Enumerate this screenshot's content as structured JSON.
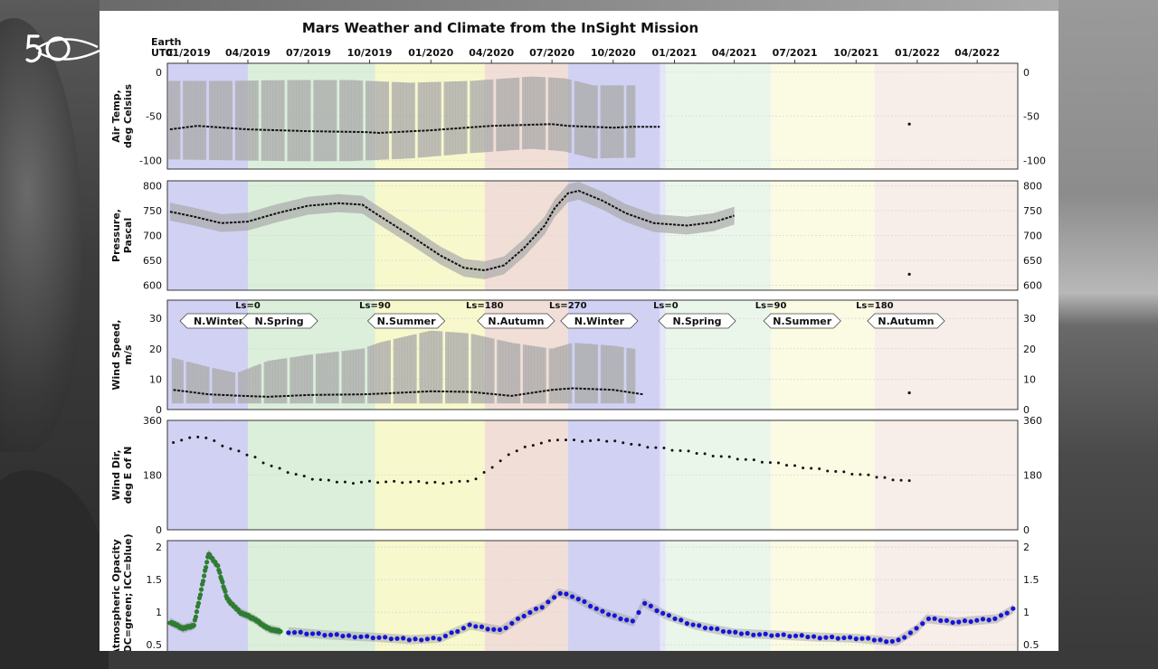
{
  "figure": {
    "title": "Mars Weather and Climate from the InSight Mission",
    "x_axis_caption": [
      "Earth",
      "UTC"
    ]
  },
  "colors": {
    "winter": "#c9c9f2",
    "spring": "#d5ecd5",
    "summer": "#f7f7c4",
    "autumn": "#efd9d0",
    "envelope": "#a9a9a9",
    "median": "#111111",
    "opacity_idc": "#2f7d32",
    "opacity_icc": "#1515d6"
  },
  "chart_data": {
    "type": "line",
    "x_axis": {
      "kind": "date",
      "range": [
        "2018-12-01",
        "2022-06-01"
      ],
      "tick_labels": [
        "01/2019",
        "04/2019",
        "07/2019",
        "10/2019",
        "01/2020",
        "04/2020",
        "07/2020",
        "10/2020",
        "01/2021",
        "04/2021",
        "07/2021",
        "10/2021",
        "01/2022",
        "04/2022"
      ]
    },
    "seasons": [
      {
        "name": "N.Winter",
        "start": "2018-12-01",
        "end": "2019-04-01",
        "color_key": "winter"
      },
      {
        "name": "N.Spring",
        "start": "2019-04-01",
        "end": "2019-10-09",
        "color_key": "spring"
      },
      {
        "name": "N.Summer",
        "start": "2019-10-09",
        "end": "2020-03-22",
        "color_key": "summer"
      },
      {
        "name": "N.Autumn",
        "start": "2020-03-22",
        "end": "2020-07-25",
        "color_key": "autumn"
      },
      {
        "name": "N.Winter",
        "start": "2020-07-25",
        "end": "2020-12-19",
        "color_key": "winter"
      },
      {
        "name": "N.Spring",
        "start": "2020-12-19",
        "end": "2021-05-26",
        "color_key": "spring"
      },
      {
        "name": "N.Summer",
        "start": "2021-05-26",
        "end": "2021-10-29",
        "color_key": "summer"
      },
      {
        "name": "N.Autumn",
        "start": "2021-10-29",
        "end": "2022-06-01",
        "color_key": "autumn"
      }
    ],
    "ls_markers": [
      {
        "label": "Ls=0",
        "date": "2019-04-01"
      },
      {
        "label": "Ls=90",
        "date": "2019-10-09"
      },
      {
        "label": "Ls=180",
        "date": "2020-03-22"
      },
      {
        "label": "Ls=270",
        "date": "2020-07-25"
      },
      {
        "label": "Ls=0",
        "date": "2020-12-19"
      },
      {
        "label": "Ls=90",
        "date": "2021-05-26"
      },
      {
        "label": "Ls=180",
        "date": "2021-10-29"
      }
    ],
    "panels": [
      {
        "id": "air-temp",
        "ylabel": [
          "Air Temp,",
          "deg Celsius"
        ],
        "ylim": [
          -110,
          10
        ],
        "yticks": [
          0,
          -50,
          -100
        ],
        "series": [
          {
            "kind": "envelope",
            "x": [
              "2018-12-05",
              "2019-03-01",
              "2019-06-01",
              "2019-09-01",
              "2019-12-01",
              "2020-03-01",
              "2020-06-01",
              "2020-07-20",
              "2020-09-01",
              "2020-11-01"
            ],
            "upper": [
              -10,
              -10,
              -9,
              -9,
              -12,
              -10,
              -5,
              -7,
              -15,
              -15
            ],
            "lower": [
              -99,
              -100,
              -101,
              -101,
              -98,
              -92,
              -87,
              -90,
              -98,
              -97
            ]
          },
          {
            "kind": "median",
            "x": [
              "2018-12-05",
              "2019-01-15",
              "2019-04-01",
              "2019-07-01",
              "2019-09-25",
              "2019-10-15",
              "2020-01-01",
              "2020-04-01",
              "2020-07-01",
              "2020-07-25",
              "2020-10-01",
              "2020-11-01",
              "2020-11-15",
              "2020-12-10",
              "2021-12-20"
            ],
            "y": [
              -65,
              -61,
              -65,
              -67,
              -68,
              -69,
              -66,
              -61,
              -59,
              -61,
              -63,
              -62,
              -62,
              -62,
              -59
            ]
          }
        ]
      },
      {
        "id": "pressure",
        "ylabel": [
          "Pressure,",
          "Pascal"
        ],
        "ylim": [
          590,
          810
        ],
        "yticks": [
          800,
          750,
          700,
          650,
          600
        ],
        "series": [
          {
            "kind": "median",
            "x": [
              "2018-12-05",
              "2019-01-10",
              "2019-02-20",
              "2019-04-01",
              "2019-05-15",
              "2019-07-01",
              "2019-08-15",
              "2019-09-20",
              "2019-10-15",
              "2019-12-01",
              "2020-01-15",
              "2020-02-20",
              "2020-03-22",
              "2020-04-20",
              "2020-05-20",
              "2020-06-20",
              "2020-07-05",
              "2020-07-25",
              "2020-08-10",
              "2020-09-15",
              "2020-10-20",
              "2020-12-01",
              "2021-01-20",
              "2021-03-01",
              "2021-04-01",
              "2021-12-20"
            ],
            "y": [
              748,
              738,
              725,
              728,
              745,
              760,
              765,
              762,
              740,
              700,
              660,
              635,
              630,
              640,
              675,
              720,
              755,
              785,
              790,
              770,
              745,
              725,
              720,
              727,
              740,
              622
            ]
          }
        ]
      },
      {
        "id": "wind-speed",
        "ylabel": [
          "Wind Speed,",
          "m/s"
        ],
        "ylim": [
          0,
          36
        ],
        "yticks": [
          0,
          10,
          20,
          30
        ],
        "series": [
          {
            "kind": "envelope",
            "x": [
              "2018-12-10",
              "2019-02-01",
              "2019-03-15",
              "2019-05-01",
              "2019-07-01",
              "2019-09-20",
              "2019-10-15",
              "2020-01-01",
              "2020-03-01",
              "2020-05-01",
              "2020-07-01",
              "2020-08-01",
              "2020-10-01",
              "2020-11-01"
            ],
            "upper": [
              17,
              14,
              12,
              16,
              18,
              20,
              22,
              26,
              25,
              22,
              20,
              22,
              21,
              20
            ],
            "lower": [
              2,
              2,
              2,
              2,
              2,
              2,
              2,
              2,
              2,
              2,
              2,
              2,
              2,
              2
            ]
          },
          {
            "kind": "median",
            "x": [
              "2018-12-10",
              "2019-02-01",
              "2019-03-25",
              "2019-05-01",
              "2019-07-01",
              "2019-09-20",
              "2019-10-15",
              "2020-01-01",
              "2020-03-01",
              "2020-05-01",
              "2020-07-01",
              "2020-08-01",
              "2020-10-01",
              "2020-11-15",
              "2021-12-20"
            ],
            "y": [
              6.5,
              5,
              4.5,
              4.2,
              4.8,
              5,
              5.2,
              6,
              5.8,
              4.5,
              6.5,
              7,
              6.5,
              5,
              5.5
            ]
          }
        ]
      },
      {
        "id": "wind-dir",
        "ylabel": [
          "Wind Dir,",
          "deg E of N"
        ],
        "ylim": [
          0,
          360
        ],
        "yticks": [
          0,
          180,
          360
        ],
        "series": [
          {
            "kind": "points",
            "x": [
              "2018-12-10",
              "2019-01-01",
              "2019-01-20",
              "2019-02-10",
              "2019-03-01",
              "2019-03-20",
              "2019-04-10",
              "2019-05-01",
              "2019-06-01",
              "2019-07-01",
              "2019-08-01",
              "2019-09-01",
              "2019-09-25",
              "2019-10-15",
              "2019-11-15",
              "2019-12-15",
              "2020-01-15",
              "2020-02-15",
              "2020-03-10",
              "2020-04-01",
              "2020-04-20",
              "2020-05-10",
              "2020-06-01",
              "2020-06-20",
              "2020-07-10",
              "2020-08-10",
              "2020-09-15",
              "2020-10-15",
              "2020-11-01",
              "2021-12-20"
            ],
            "y": [
              290,
              300,
              310,
              290,
              270,
              255,
              240,
              215,
              190,
              170,
              160,
              155,
              158,
              158,
              157,
              156,
              155,
              158,
              168,
              205,
              235,
              262,
              280,
              288,
              298,
              292,
              293,
              290,
              280,
              160
            ]
          }
        ]
      },
      {
        "id": "opacity",
        "ylabel": [
          "Atmospheric Opacity",
          "(IDC=green; ICC=blue)"
        ],
        "ylim": [
          0.35,
          2.1
        ],
        "yticks": [
          2.0,
          1.5,
          1.0,
          0.5
        ],
        "series": [
          {
            "kind": "points",
            "color_key": "opacity_idc",
            "x": [
              "2018-12-05",
              "2018-12-25",
              "2019-01-10",
              "2019-01-20",
              "2019-02-01",
              "2019-02-15",
              "2019-03-01",
              "2019-03-20",
              "2019-04-10",
              "2019-05-01",
              "2019-05-20"
            ],
            "y": [
              0.85,
              0.75,
              0.8,
              1.3,
              1.9,
              1.7,
              1.2,
              1.0,
              0.9,
              0.75,
              0.7
            ]
          },
          {
            "kind": "points",
            "color_key": "opacity_icc",
            "x": [
              "2019-06-01",
              "2019-08-01",
              "2019-10-01",
              "2019-12-01",
              "2020-01-15",
              "2020-03-01",
              "2020-04-15",
              "2020-05-20",
              "2020-06-20",
              "2020-07-10",
              "2020-08-01",
              "2020-09-15",
              "2020-11-01",
              "2020-11-15",
              "2020-12-20",
              "2021-02-01",
              "2021-04-01",
              "2021-06-01",
              "2021-08-01",
              "2021-10-01",
              "2021-12-01",
              "2022-01-01",
              "2022-01-15",
              "2022-03-01",
              "2022-05-01",
              "2022-05-25"
            ],
            "y": [
              0.7,
              0.65,
              0.62,
              0.58,
              0.6,
              0.8,
              0.72,
              0.95,
              1.1,
              1.3,
              1.25,
              1.0,
              0.85,
              1.15,
              0.95,
              0.8,
              0.68,
              0.65,
              0.62,
              0.6,
              0.55,
              0.75,
              0.9,
              0.85,
              0.9,
              1.05
            ]
          }
        ]
      }
    ]
  }
}
